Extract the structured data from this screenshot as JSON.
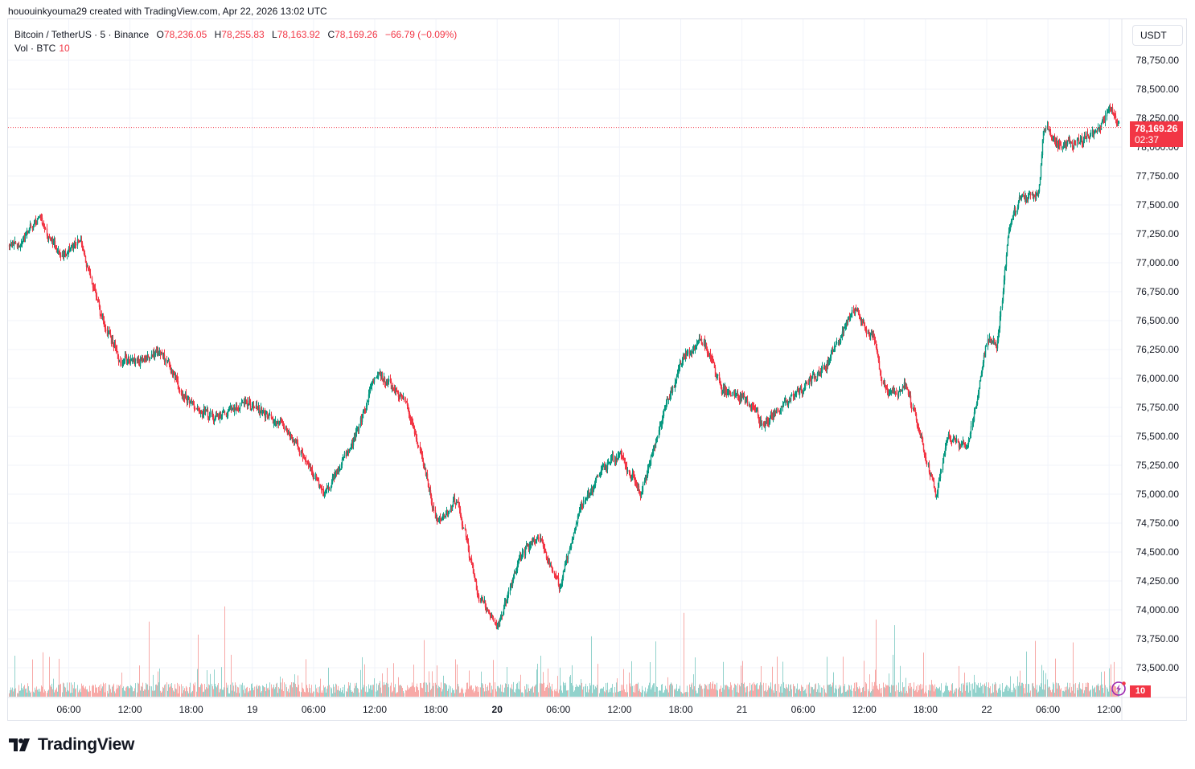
{
  "header": {
    "credit": "hououinkyouma29 created with TradingView.com, Apr 22, 2026 13:02 UTC"
  },
  "legend": {
    "symbol": "Bitcoin / TetherUS · 5 · Binance",
    "open_label": "O",
    "open": "78,236.05",
    "high_label": "H",
    "high": "78,255.83",
    "low_label": "L",
    "low": "78,163.92",
    "close_label": "C",
    "close": "78,169.26",
    "change": "−66.79 (−0.09%)",
    "volume_label": "Vol · BTC",
    "volume_value": "10"
  },
  "price_axis": {
    "currency_button": "USDT",
    "last_price": "78,169.26",
    "countdown": "02:37",
    "volume_tag": "10"
  },
  "footer": {
    "brand": "TradingView"
  },
  "colors": {
    "up": "#089981",
    "down": "#f23645",
    "vol_up": "#92d2cc",
    "vol_down": "#f7a9a7",
    "grid": "#f0f3fa",
    "price_line": "#f23645"
  },
  "chart_data": {
    "type": "candlestick",
    "title": "Bitcoin / TetherUS · 5 · Binance",
    "interval": "5m",
    "xlabel": "",
    "ylabel": "USDT",
    "ylim": [
      73300,
      78900
    ],
    "y_ticks": [
      "78,750.00",
      "78,500.00",
      "78,250.00",
      "78,000.00",
      "77,750.00",
      "77,500.00",
      "77,250.00",
      "77,000.00",
      "76,750.00",
      "76,500.00",
      "76,250.00",
      "76,000.00",
      "75,750.00",
      "75,500.00",
      "75,250.00",
      "75,000.00",
      "74,750.00",
      "74,500.00",
      "74,250.00",
      "74,000.00",
      "73,750.00",
      "73,500.00"
    ],
    "x_ticks": [
      {
        "label": "06:00",
        "bold": false
      },
      {
        "label": "12:00",
        "bold": false
      },
      {
        "label": "18:00",
        "bold": false
      },
      {
        "label": "19",
        "bold": false
      },
      {
        "label": "06:00",
        "bold": false
      },
      {
        "label": "12:00",
        "bold": false
      },
      {
        "label": "18:00",
        "bold": false
      },
      {
        "label": "20",
        "bold": true
      },
      {
        "label": "06:00",
        "bold": false
      },
      {
        "label": "12:00",
        "bold": false
      },
      {
        "label": "18:00",
        "bold": false
      },
      {
        "label": "21",
        "bold": false
      },
      {
        "label": "06:00",
        "bold": false
      },
      {
        "label": "12:00",
        "bold": false
      },
      {
        "label": "18:00",
        "bold": false
      },
      {
        "label": "22",
        "bold": false
      },
      {
        "label": "06:00",
        "bold": false
      },
      {
        "label": "12:00",
        "bold": false
      }
    ],
    "last": {
      "open": 78236.05,
      "high": 78255.83,
      "low": 78163.92,
      "close": 78169.26,
      "volume": 10
    },
    "price_path_approx": [
      {
        "t": "Apr 18 01:00",
        "price": 77150
      },
      {
        "t": "Apr 18 03:00",
        "price": 77400
      },
      {
        "t": "Apr 18 05:00",
        "price": 77050
      },
      {
        "t": "Apr 18 07:00",
        "price": 77200
      },
      {
        "t": "Apr 18 09:00",
        "price": 76550
      },
      {
        "t": "Apr 18 11:00",
        "price": 76150
      },
      {
        "t": "Apr 18 13:00",
        "price": 76150
      },
      {
        "t": "Apr 18 15:00",
        "price": 76250
      },
      {
        "t": "Apr 18 17:00",
        "price": 75850
      },
      {
        "t": "Apr 18 20:00",
        "price": 75650
      },
      {
        "t": "Apr 18 23:00",
        "price": 75800
      },
      {
        "t": "Apr 19 03:00",
        "price": 75600
      },
      {
        "t": "Apr 19 05:00",
        "price": 75300
      },
      {
        "t": "Apr 19 07:00",
        "price": 75000
      },
      {
        "t": "Apr 19 10:00",
        "price": 75500
      },
      {
        "t": "Apr 19 12:00",
        "price": 76050
      },
      {
        "t": "Apr 19 15:00",
        "price": 75800
      },
      {
        "t": "Apr 19 17:00",
        "price": 75150
      },
      {
        "t": "Apr 19 18:00",
        "price": 74750
      },
      {
        "t": "Apr 19 20:00",
        "price": 74950
      },
      {
        "t": "Apr 19 22:00",
        "price": 74150
      },
      {
        "t": "Apr 20 00:00",
        "price": 73850
      },
      {
        "t": "Apr 20 02:00",
        "price": 74450
      },
      {
        "t": "Apr 20 04:00",
        "price": 74650
      },
      {
        "t": "Apr 20 06:00",
        "price": 74200
      },
      {
        "t": "Apr 20 08:00",
        "price": 74850
      },
      {
        "t": "Apr 20 10:00",
        "price": 75200
      },
      {
        "t": "Apr 20 12:00",
        "price": 75350
      },
      {
        "t": "Apr 20 14:00",
        "price": 75000
      },
      {
        "t": "Apr 20 16:00",
        "price": 75650
      },
      {
        "t": "Apr 20 18:00",
        "price": 76150
      },
      {
        "t": "Apr 20 20:00",
        "price": 76350
      },
      {
        "t": "Apr 20 22:00",
        "price": 75900
      },
      {
        "t": "Apr 21 00:00",
        "price": 75850
      },
      {
        "t": "Apr 21 02:00",
        "price": 75600
      },
      {
        "t": "Apr 21 05:00",
        "price": 75850
      },
      {
        "t": "Apr 21 08:00",
        "price": 76100
      },
      {
        "t": "Apr 21 10:00",
        "price": 76450
      },
      {
        "t": "Apr 21 11:00",
        "price": 76600
      },
      {
        "t": "Apr 21 13:00",
        "price": 76300
      },
      {
        "t": "Apr 21 14:00",
        "price": 75850
      },
      {
        "t": "Apr 21 16:00",
        "price": 75950
      },
      {
        "t": "Apr 21 17:00",
        "price": 75650
      },
      {
        "t": "Apr 21 19:00",
        "price": 74950
      },
      {
        "t": "Apr 21 20:00",
        "price": 75500
      },
      {
        "t": "Apr 21 22:00",
        "price": 75400
      },
      {
        "t": "Apr 22 00:00",
        "price": 76350
      },
      {
        "t": "Apr 22 01:00",
        "price": 76300
      },
      {
        "t": "Apr 22 02:00",
        "price": 77250
      },
      {
        "t": "Apr 22 03:00",
        "price": 77550
      },
      {
        "t": "Apr 22 05:00",
        "price": 77600
      },
      {
        "t": "Apr 22 05:30",
        "price": 78200
      },
      {
        "t": "Apr 22 07:00",
        "price": 78000
      },
      {
        "t": "Apr 22 09:00",
        "price": 78050
      },
      {
        "t": "Apr 22 11:00",
        "price": 78150
      },
      {
        "t": "Apr 22 12:00",
        "price": 78350
      },
      {
        "t": "Apr 22 13:00",
        "price": 78169
      }
    ]
  }
}
